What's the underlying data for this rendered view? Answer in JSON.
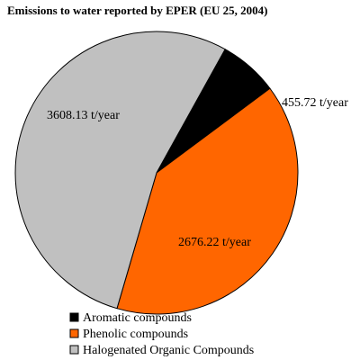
{
  "chart_data": {
    "type": "pie",
    "title": "Emissions to water reported by EPER (EU 25, 2004)",
    "start_angle_deg": -61,
    "slices": [
      {
        "name": "Aromatic compounds",
        "value": 455.72,
        "label": "455.72 t/year",
        "color": "#000000"
      },
      {
        "name": "Phenolic compounds",
        "value": 2676.22,
        "label": "2676.22 t/year",
        "color": "#ff6600"
      },
      {
        "name": "Halogenated Organic Compounds",
        "value": 3608.13,
        "label": "3608.13 t/year",
        "color": "#c0c0c0"
      }
    ],
    "legend_position": "bottom-center"
  }
}
